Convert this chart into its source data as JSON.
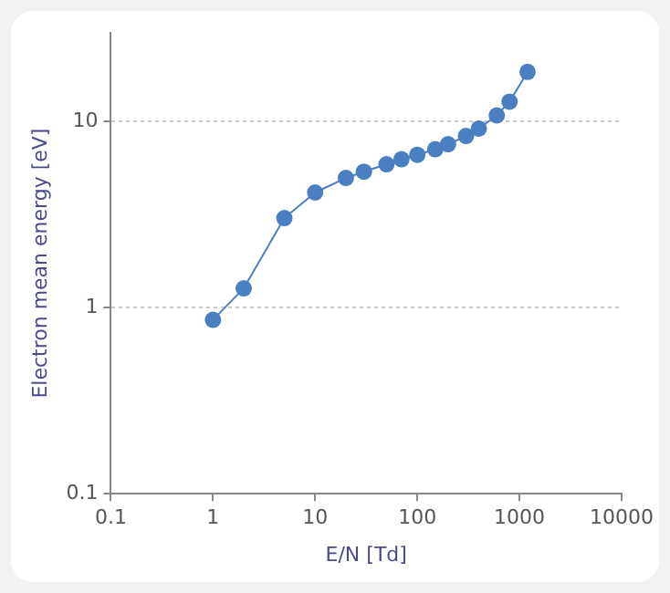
{
  "chart_data": {
    "type": "line",
    "xlabel": "E/N [Td]",
    "ylabel": "Electron mean energy [eV]",
    "x": [
      1,
      2,
      5,
      10,
      20,
      30,
      50,
      70,
      100,
      150,
      200,
      300,
      400,
      600,
      800,
      1200
    ],
    "series": [
      {
        "color": "#4a7fc1",
        "values": [
          0.86,
          1.27,
          3.03,
          4.16,
          4.98,
          5.38,
          5.9,
          6.28,
          6.63,
          7.11,
          7.56,
          8.37,
          9.18,
          10.8,
          12.8,
          18.5
        ]
      }
    ],
    "log": "xy",
    "xlim": [
      0.1,
      10000
    ],
    "ylim": [
      0.1,
      30
    ],
    "xticks": [
      0.1,
      1,
      10,
      100,
      1000,
      10000
    ],
    "yticks": [
      0.1,
      1,
      10
    ],
    "grid": "y",
    "legend": false,
    "marker": "circle",
    "line_style": "solid"
  }
}
